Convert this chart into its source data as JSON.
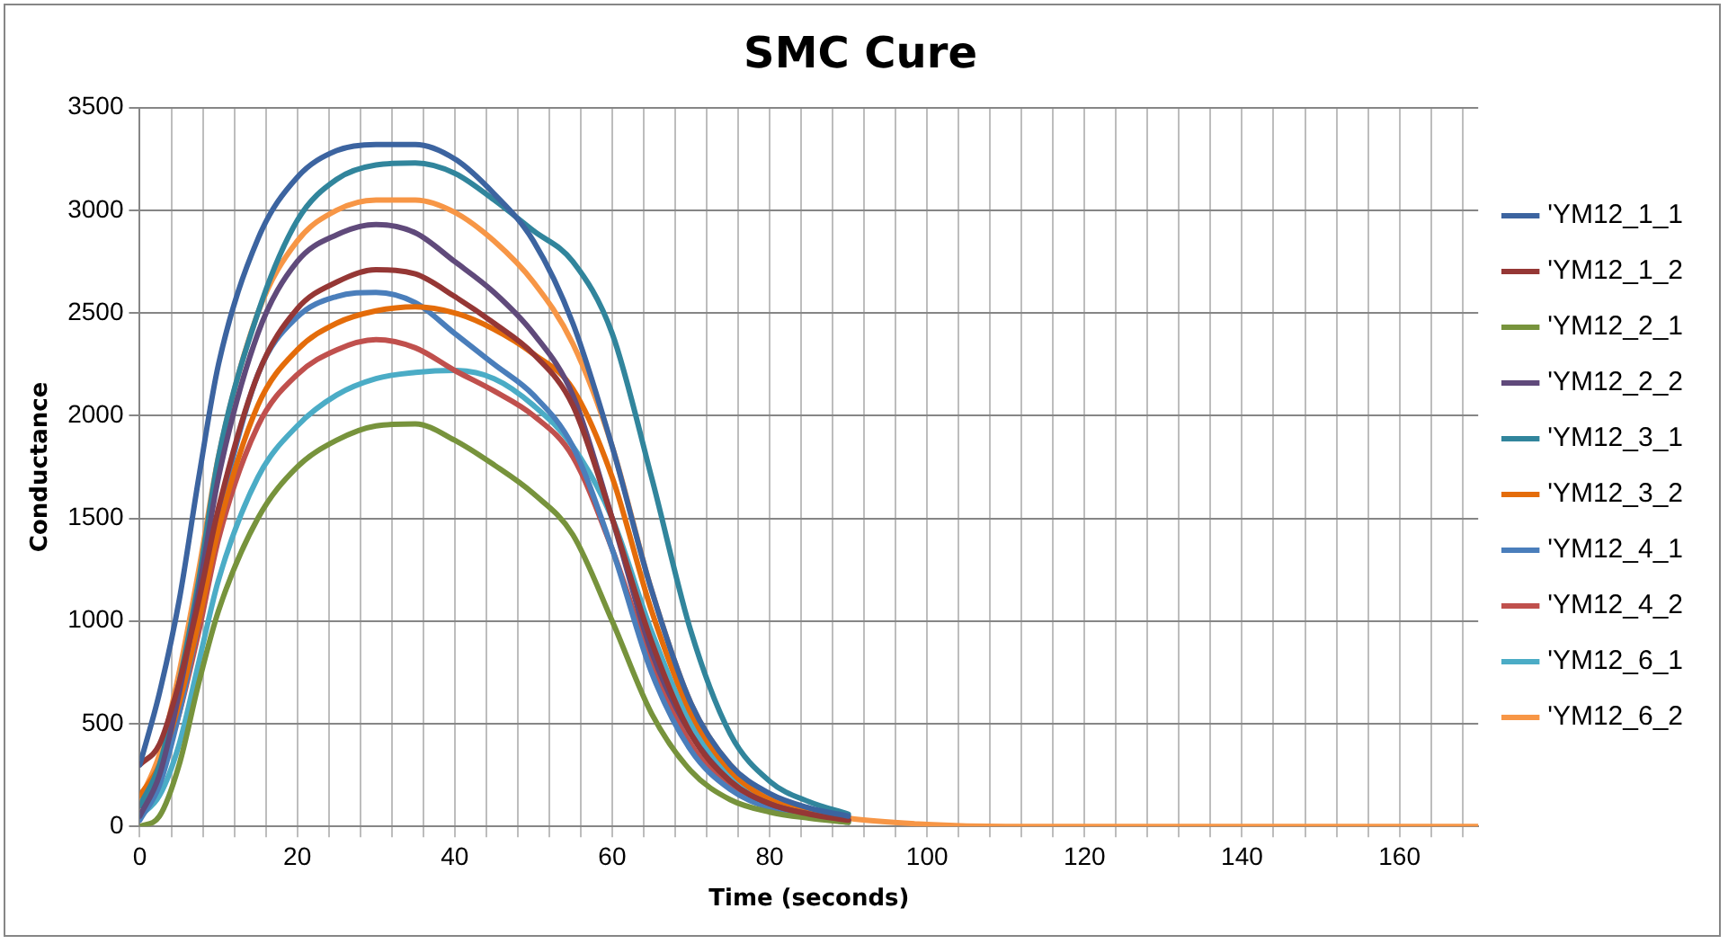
{
  "chart_data": {
    "type": "line",
    "title": "SMC Cure",
    "xlabel": "Time (seconds)",
    "ylabel": "Conductance",
    "x": [
      0,
      2.5,
      5,
      7.5,
      10,
      15,
      20,
      25,
      30,
      35,
      40,
      45,
      50,
      55,
      60,
      65,
      70,
      75,
      80,
      85,
      90,
      100,
      110,
      120,
      140,
      170
    ],
    "xlim": [
      0,
      170
    ],
    "xticks": [
      0,
      {
        "value": 4,
        "label": null
      },
      {
        "value": 8,
        "label": null
      },
      {
        "value": 12,
        "label": null
      },
      {
        "value": 16,
        "label": null
      },
      20,
      {
        "value": 24,
        "label": null
      },
      {
        "value": 28,
        "label": null
      },
      {
        "value": 32,
        "label": null
      },
      {
        "value": 36,
        "label": null
      },
      40,
      {
        "value": 44,
        "label": null
      },
      {
        "value": 48,
        "label": null
      },
      {
        "value": 52,
        "label": null
      },
      {
        "value": 56,
        "label": null
      },
      60,
      {
        "value": 64,
        "label": null
      },
      {
        "value": 68,
        "label": null
      },
      {
        "value": 72,
        "label": null
      },
      {
        "value": 76,
        "label": null
      },
      80,
      {
        "value": 84,
        "label": null
      },
      {
        "value": 88,
        "label": null
      },
      {
        "value": 92,
        "label": null
      },
      {
        "value": 96,
        "label": null
      },
      100,
      {
        "value": 104,
        "label": null
      },
      {
        "value": 108,
        "label": null
      },
      {
        "value": 112,
        "label": null
      },
      {
        "value": 116,
        "label": null
      },
      120,
      {
        "value": 124,
        "label": null
      },
      {
        "value": 128,
        "label": null
      },
      {
        "value": 132,
        "label": null
      },
      {
        "value": 136,
        "label": null
      },
      140,
      {
        "value": 144,
        "label": null
      },
      {
        "value": 148,
        "label": null
      },
      {
        "value": 152,
        "label": null
      },
      {
        "value": 156,
        "label": null
      },
      160,
      {
        "value": 164,
        "label": null
      },
      {
        "value": 168,
        "label": null
      }
    ],
    "ylim": [
      0,
      3500
    ],
    "yticks": [
      0,
      500,
      1000,
      1500,
      2000,
      2500,
      3000,
      3500
    ],
    "grid": true,
    "legend": "right",
    "marker": "none",
    "line_style": "solid",
    "series": [
      {
        "name": "'YM12_1_1",
        "color": "#3c64a0",
        "values": [
          300,
          650,
          1100,
          1700,
          2250,
          2860,
          3160,
          3290,
          3320,
          3320,
          3250,
          3080,
          2850,
          2450,
          1850,
          1150,
          600,
          300,
          160,
          90,
          50,
          null,
          null,
          null,
          null,
          null
        ]
      },
      {
        "name": "'YM12_1_2",
        "color": "#953735",
        "values": [
          300,
          400,
          700,
          1100,
          1550,
          2200,
          2520,
          2650,
          2710,
          2690,
          2580,
          2450,
          2300,
          2050,
          1500,
          900,
          450,
          220,
          110,
          60,
          30,
          null,
          null,
          null,
          null,
          null
        ]
      },
      {
        "name": "'YM12_2_1",
        "color": "#77933c",
        "values": [
          0,
          50,
          300,
          700,
          1050,
          1500,
          1750,
          1880,
          1950,
          1960,
          1880,
          1760,
          1620,
          1420,
          1000,
          550,
          270,
          130,
          70,
          40,
          20,
          null,
          null,
          null,
          null,
          null
        ]
      },
      {
        "name": "'YM12_2_2",
        "color": "#604a7b",
        "values": [
          50,
          250,
          650,
          1150,
          1700,
          2400,
          2750,
          2880,
          2930,
          2890,
          2750,
          2600,
          2400,
          2100,
          1500,
          850,
          450,
          220,
          110,
          60,
          30,
          null,
          null,
          null,
          null,
          null
        ]
      },
      {
        "name": "'YM12_3_1",
        "color": "#31859c",
        "values": [
          100,
          300,
          700,
          1200,
          1800,
          2500,
          2950,
          3150,
          3220,
          3230,
          3180,
          3050,
          2900,
          2750,
          2400,
          1700,
          950,
          450,
          220,
          120,
          60,
          null,
          null,
          null,
          null,
          null
        ]
      },
      {
        "name": "'YM12_3_2",
        "color": "#e46c0a",
        "values": [
          150,
          300,
          600,
          1000,
          1450,
          2050,
          2320,
          2450,
          2510,
          2530,
          2500,
          2420,
          2300,
          2130,
          1700,
          1050,
          550,
          270,
          130,
          70,
          40,
          null,
          null,
          null,
          null,
          null
        ]
      },
      {
        "name": "'YM12_4_1",
        "color": "#4a7ebb",
        "values": [
          30,
          200,
          550,
          1000,
          1500,
          2200,
          2480,
          2580,
          2600,
          2550,
          2400,
          2250,
          2100,
          1850,
          1350,
          750,
          370,
          180,
          90,
          50,
          20,
          null,
          null,
          null,
          null,
          null
        ]
      },
      {
        "name": "'YM12_4_2",
        "color": "#c0504d",
        "values": [
          100,
          250,
          550,
          950,
          1400,
          1950,
          2200,
          2320,
          2370,
          2330,
          2220,
          2120,
          2000,
          1800,
          1350,
          800,
          400,
          200,
          100,
          60,
          30,
          null,
          null,
          null,
          null,
          null
        ]
      },
      {
        "name": "'YM12_6_1",
        "color": "#4bacc6",
        "values": [
          50,
          150,
          400,
          800,
          1200,
          1700,
          1950,
          2100,
          2180,
          2210,
          2220,
          2180,
          2050,
          1850,
          1500,
          950,
          500,
          250,
          120,
          60,
          30,
          null,
          null,
          null,
          null,
          null
        ]
      },
      {
        "name": "'YM12_6_2",
        "color": "#f79646",
        "values": [
          130,
          350,
          750,
          1250,
          1800,
          2500,
          2850,
          3000,
          3050,
          3050,
          2990,
          2850,
          2650,
          2350,
          1850,
          1150,
          600,
          300,
          150,
          80,
          40,
          10,
          0,
          0,
          0,
          0
        ]
      }
    ]
  }
}
